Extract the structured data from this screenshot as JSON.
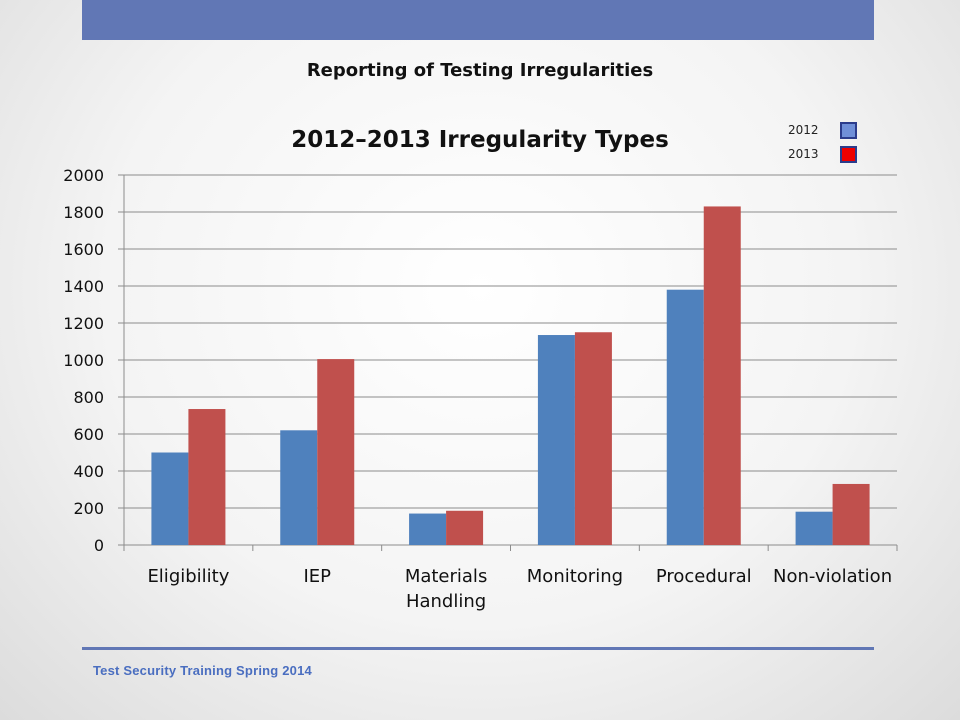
{
  "slide": {
    "title": "Reporting of Testing Irregularities",
    "footer": "Test Security Training  Spring 2014"
  },
  "colors": {
    "header_bar": "#6177b5",
    "series_2012": "#4f81bd",
    "series_2013": "#c0504d",
    "legend_2012": "#6f8fd8",
    "legend_2013": "#ee0000",
    "footer_text": "#4a6ec0"
  },
  "legend": {
    "items": [
      {
        "label": "2012",
        "color": "#6f8fd8"
      },
      {
        "label": "2013",
        "color": "#ee0000"
      }
    ]
  },
  "chart_data": {
    "type": "bar",
    "title": "2012–2013 Irregularity Types",
    "xlabel": "",
    "ylabel": "",
    "ylim": [
      0,
      2000
    ],
    "yticks": [
      0,
      200,
      400,
      600,
      800,
      1000,
      1200,
      1400,
      1600,
      1800,
      2000
    ],
    "grid": true,
    "legend_position": "top-right",
    "categories": [
      "Eligibility",
      "IEP",
      "Materials Handling",
      "Monitoring",
      "Procedural",
      "Non-violation"
    ],
    "category_lines": [
      [
        "Eligibility"
      ],
      [
        "IEP"
      ],
      [
        "Materials",
        "Handling"
      ],
      [
        "Monitoring"
      ],
      [
        "Procedural"
      ],
      [
        "Non-violation"
      ]
    ],
    "series": [
      {
        "name": "2012",
        "color": "#4f81bd",
        "values": [
          500,
          620,
          170,
          1135,
          1380,
          180
        ]
      },
      {
        "name": "2013",
        "color": "#c0504d",
        "values": [
          735,
          1005,
          185,
          1150,
          1830,
          330
        ]
      }
    ]
  }
}
